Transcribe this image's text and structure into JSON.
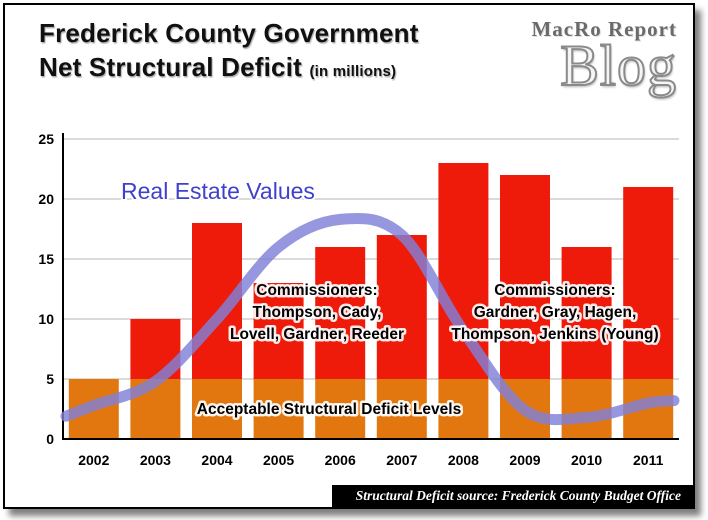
{
  "header": {
    "title_line1": "Frederick County Government",
    "title_line2": "Net Structural Deficit",
    "title_suffix": "(in millions)",
    "logo_line1": "MacRo Report",
    "logo_line2": "Blog"
  },
  "chart_data": {
    "type": "bar",
    "title": "Frederick County Government Net Structural Deficit (in millions)",
    "categories": [
      "2002",
      "2003",
      "2004",
      "2005",
      "2006",
      "2007",
      "2008",
      "2009",
      "2010",
      "2011"
    ],
    "series": [
      {
        "name": "Net Structural Deficit",
        "type": "bar",
        "values": [
          5,
          10,
          18,
          13,
          16,
          17,
          23,
          22,
          16,
          21
        ],
        "color": "#ee1b0b",
        "below_threshold_color": "#e1770e"
      },
      {
        "name": "Real Estate Values",
        "type": "line",
        "values": [
          2.8,
          4.8,
          10,
          16,
          18.3,
          17,
          9,
          2.4,
          1.8,
          3.0
        ],
        "start_value": 1.9,
        "end_value": 3.2,
        "color": "#8080d8"
      }
    ],
    "threshold": {
      "value": 5,
      "label": "Acceptable Structural Deficit Levels"
    },
    "ylim": [
      0,
      25
    ],
    "yticks": [
      0,
      5,
      10,
      15,
      20,
      25
    ],
    "grid": true,
    "legend": "none",
    "annotations": {
      "line_label": "Real Estate Values",
      "line_label_color": "#4040cf",
      "commissioners_left": [
        "Commissioners:",
        "Thompson, Cady,",
        "Lovell, Gardner, Reeder"
      ],
      "commissioners_right": [
        "Commissioners:",
        "Gardner, Gray, Hagen,",
        "Thompson, Jenkins (Young)"
      ]
    }
  },
  "footer": {
    "source": "Structural Deficit source: Frederick County Budget Office"
  }
}
